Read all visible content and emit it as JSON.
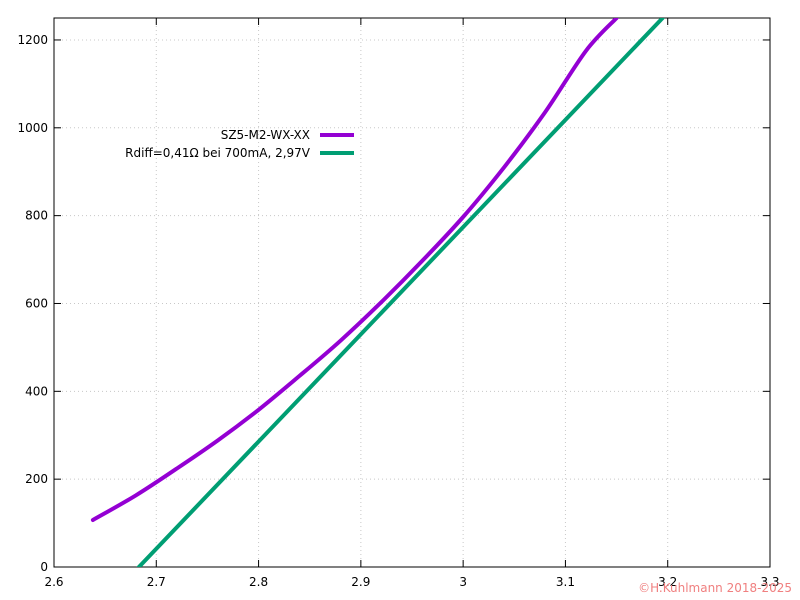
{
  "chart_data": {
    "type": "line",
    "title": "",
    "xlabel": "",
    "ylabel": "",
    "xlim": [
      2.6,
      3.3
    ],
    "ylim": [
      0,
      1250
    ],
    "xticks": [
      "2.6",
      "2.7",
      "2.8",
      "2.9",
      "3",
      "3.1",
      "3.2",
      "3.3"
    ],
    "xtick_values": [
      2.6,
      2.7,
      2.8,
      2.9,
      3.0,
      3.1,
      3.2,
      3.3
    ],
    "yticks": [
      "0",
      "200",
      "400",
      "600",
      "800",
      "1000",
      "1200"
    ],
    "ytick_values": [
      0,
      200,
      400,
      600,
      800,
      1000,
      1200
    ],
    "grid": true,
    "legend_position": "top-left",
    "series": [
      {
        "name": "SZ5-M2-WX-XX",
        "color": "#9400d3",
        "x": [
          2.638,
          2.68,
          2.72,
          2.76,
          2.8,
          2.84,
          2.88,
          2.92,
          2.96,
          3.0,
          3.04,
          3.08,
          3.12,
          3.15
        ],
        "y": [
          107,
          163,
          224,
          288,
          358,
          435,
          515,
          603,
          697,
          797,
          910,
          1035,
          1175,
          1250
        ]
      },
      {
        "name": "Rdiff=0,41Ω bei 700mA, 2,97V",
        "color": "#009e73",
        "x": [
          2.683,
          3.195
        ],
        "y": [
          0,
          1250
        ]
      }
    ]
  },
  "copyright": "©H.Kuhlmann 2018-2025"
}
